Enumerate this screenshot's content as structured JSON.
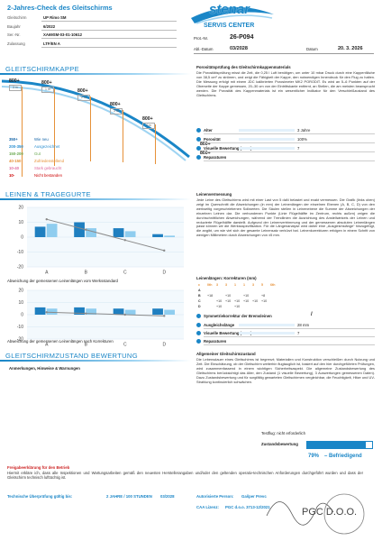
{
  "header": {
    "title": "2-Jahres-Check des Gleitschirms",
    "fields": [
      [
        "Gleitschirm",
        "UP Rimo SM"
      ],
      [
        "Baujahr",
        "6/2022"
      ],
      [
        "Ser.-Nr.",
        "XA69SM-03-01-10612"
      ],
      [
        "Zulassung",
        "LTF/EN A"
      ]
    ],
    "logo": "stenar",
    "logo_sub": "SERVIS CENTER",
    "prot_label": "Prot.-Nr.",
    "prot": "26-P094",
    "abl_label": "Abl.-Datum",
    "abl": "03/2028",
    "date_label": "Datum",
    "date": "20. 3. 2026"
  },
  "canopy": {
    "title": "GLEITSCHIRMKAPPE",
    "points": [
      {
        "value": "800+",
        "pos": "3 m"
      },
      {
        "value": "800+",
        "pos": "1 m"
      },
      {
        "value": "800+",
        "pos": "2 m"
      },
      {
        "value": "800+",
        "pos": "3 m"
      },
      {
        "value": "800+",
        "pos": "4 m"
      },
      {
        "value": "800+"
      },
      {
        "value": "800+"
      }
    ],
    "legend": [
      [
        "350+",
        "Wie neu"
      ],
      [
        "200-350",
        "Ausgezeichnet"
      ],
      [
        "150-200",
        "Gut"
      ],
      [
        "40-150",
        "Zufriedenstellend"
      ],
      [
        "10-40",
        "Stark gebraucht"
      ],
      [
        "10-",
        "Nicht bestanden"
      ]
    ],
    "legend_colors": [
      "#1565a8",
      "#2b8fd0",
      "#6aa84f",
      "#e69138",
      "#e06c9f",
      "#cc0000"
    ],
    "info_title": "Porositätsprüfung des Gleitschirmkappenmaterials",
    "info_text": "Die Porositätsprüfung misst die Zeit, die 0,25 l Luft benötigen, um unter 10 mbar Druck durch eine Kappenfläche von 38,5 cm² zu strömen, und zeigt die Fähigkeit der Kappe, den notwendigen Innendruck für den Flug zu halten. Die Messung erfolgt mit einem JDC kalibrierten Porosimeter MK2 PORODIT. Es wird an 5–6 Punkten auf der Oberseite der Kappe gemessen, 20–30 cm von der Eintrittskante entfernt, an Stellen, die am meisten beansprucht werden. Die Porosität des Kappenmaterials ist ein wesentlicher Indikator für den Verschleißzustand des Gleitschirms.",
    "rows": [
      [
        "Alter",
        "3 Jahre"
      ],
      [
        "Porosität",
        "100%"
      ],
      [
        "Visuelle Bewertung (1–10)",
        "7"
      ],
      [
        "Reparaturen"
      ]
    ]
  },
  "lines": {
    "title": "LEINEN & TRAGEGURTE",
    "info_title": "Leinenvermessung",
    "info_text": "Jede Leine des Gleitschirms wird mit einer Last von 5 daN belastet und exakt vermessen. Die Grafik (links oben) zeigt im Querschnitt die Abweichungen (in mm) der Leinenlängen der einzelnen Ebenen (A, B, C, D) von den werkseitig vorgeschriebenen Sollwerten. Die Säulen stellen in Leinenebene die Summe der Abweichungen der einzelnen Leinen dar. Die verbundenen Punkte (Linie Flügelhälfte im Zentrum, rechts außen) zeigen die durchschnittlichen Abweichungen, während der Trendlinien die Ausrichtung des Anstellwinkels der Leinen und reduzierte Flügelhälfte darstellt. Aufgrund der Leinenvertrimmung und der gemessenen absoluten Leinenlängen passt können wir die Werkssspezifikation. Für die Längenanalyse wird daher eine „Ausgleichslänge“ hinzugefügt, die angibt, um wie viel sich der gesamte Leinensatz verkürzt hat. Leinenkorrekturen erfolgen in einem Schritt von wenigen Millimetern durch Abweichungen von ±5 mm.",
    "corr_title": "Leinenlängen: Korrekturen (mm)",
    "corr_rows": [
      [
        "c",
        "0th",
        "3",
        "3",
        "1",
        "1",
        "3",
        "5",
        "6th"
      ],
      [
        "A",
        "",
        "",
        "",
        "",
        "",
        "",
        "",
        ""
      ],
      [
        "B",
        "+18",
        "",
        "+10",
        "",
        "+10",
        "",
        "+8",
        ""
      ],
      [
        "C",
        "",
        "+10",
        "+10",
        "+10",
        "+10",
        "+10",
        "+10",
        ""
      ],
      [
        "D",
        "",
        "+10",
        "",
        "+10",
        "",
        "",
        "",
        ""
      ]
    ],
    "sym": "Symmetriekorrektur der Bremsleinen",
    "sym_mark": "/",
    "rows": [
      [
        "Ausgleichslänge",
        "28 mm"
      ],
      [
        "Visuelle Bewertung (1–10)",
        "7"
      ],
      [
        "Reparaturen"
      ]
    ]
  },
  "chart_data": [
    {
      "type": "bar",
      "caption": "Abweichung der gemessenen Leinenlängen vom Werksstandard",
      "categories": [
        "A",
        "B",
        "C",
        "D"
      ],
      "series": [
        {
          "color": "#1f7fc0",
          "values": [
            7,
            10,
            6,
            2
          ]
        },
        {
          "color": "#8fcdef",
          "values": [
            9,
            6,
            4,
            1
          ]
        },
        {
          "type": "line",
          "color": "#8a8a8a",
          "values": [
            12,
            5,
            -2,
            -9
          ]
        }
      ],
      "ylim": [
        -20,
        20
      ],
      "yticks": [
        -20,
        -10,
        0,
        10,
        20
      ]
    },
    {
      "type": "bar",
      "caption": "Abweichung der gemessenen Leinenlängen nach Korrekturen",
      "categories": [
        "A",
        "B",
        "C",
        "D"
      ],
      "series": [
        {
          "color": "#1f7fc0",
          "values": [
            6,
            6,
            5,
            5
          ]
        },
        {
          "color": "#8fcdef",
          "values": [
            5,
            5,
            4,
            4
          ]
        },
        {
          "type": "line",
          "color": "#8a8a8a",
          "values": [
            2,
            1,
            0,
            -1
          ]
        }
      ],
      "ylim": [
        -20,
        20
      ],
      "yticks": [
        -20,
        -10,
        0,
        10,
        20
      ]
    }
  ],
  "condition": {
    "title": "GLEITSCHIRMZUSTAND BEWERTUNG",
    "notes": "Anmerkungen, Hinweise & Warnungen",
    "info_title": "Allgemeiner Gleitschirmzustand",
    "info_text": "Die Lebensdauer eines Gleitschirms ist begrenzt; Materialien und Konstruktion verschleißen durch Nutzung und Zeit. Die Einschätzung, ob der Gleitschirm weiterhin flugtauglich ist, basiert auf den hier durchgeführten Prüfungen, wird zusammenfassend in einem wichtigen Sicherheitsaspekt. Die allgemeine Zustandsbewertung des Gleitschirms berücksichtigt das Alter, den Zustand (1 visuelle Bewertung), 3 Auswertungen gemessenen Daten). Dazu Zustandsbewertung und für sorgfältig gewarteten Gleitschirmen vergleichbar, die Feuchtigkeit, Hitze und UV-Strahlung kontinuierlich schwächen.",
    "testflight": "Testflug: nicht erforderlich",
    "rating_label": "Zustandsbewertung",
    "rating": "79%",
    "rating_text": "–  Befriedigend"
  },
  "footer": {
    "title": "Freigabeerklärung für den Betrieb",
    "text": "Hiermit erkläre ich, dass alle Inspektionen und Wartungsarbeiten gemäß den neuesten Herstellerangaben und/oder den geltenden operativ-technischen Anforderungen durchgeführt wurden und dass der Gleitschirm technisch lufttüchtig ist.",
    "valid_label": "Technische Überprüfung gültig bis:",
    "valid": "2 JAHRE / 100 STUNDEN",
    "valid_date": "03/2028",
    "person_label": "Autorisierte Person:",
    "person": "Gašper Prevc",
    "license_label": "CAA Lizenz:",
    "license": "PGC d.o.o. 3713-12/2021",
    "stamp": "PGC D.O.O."
  }
}
